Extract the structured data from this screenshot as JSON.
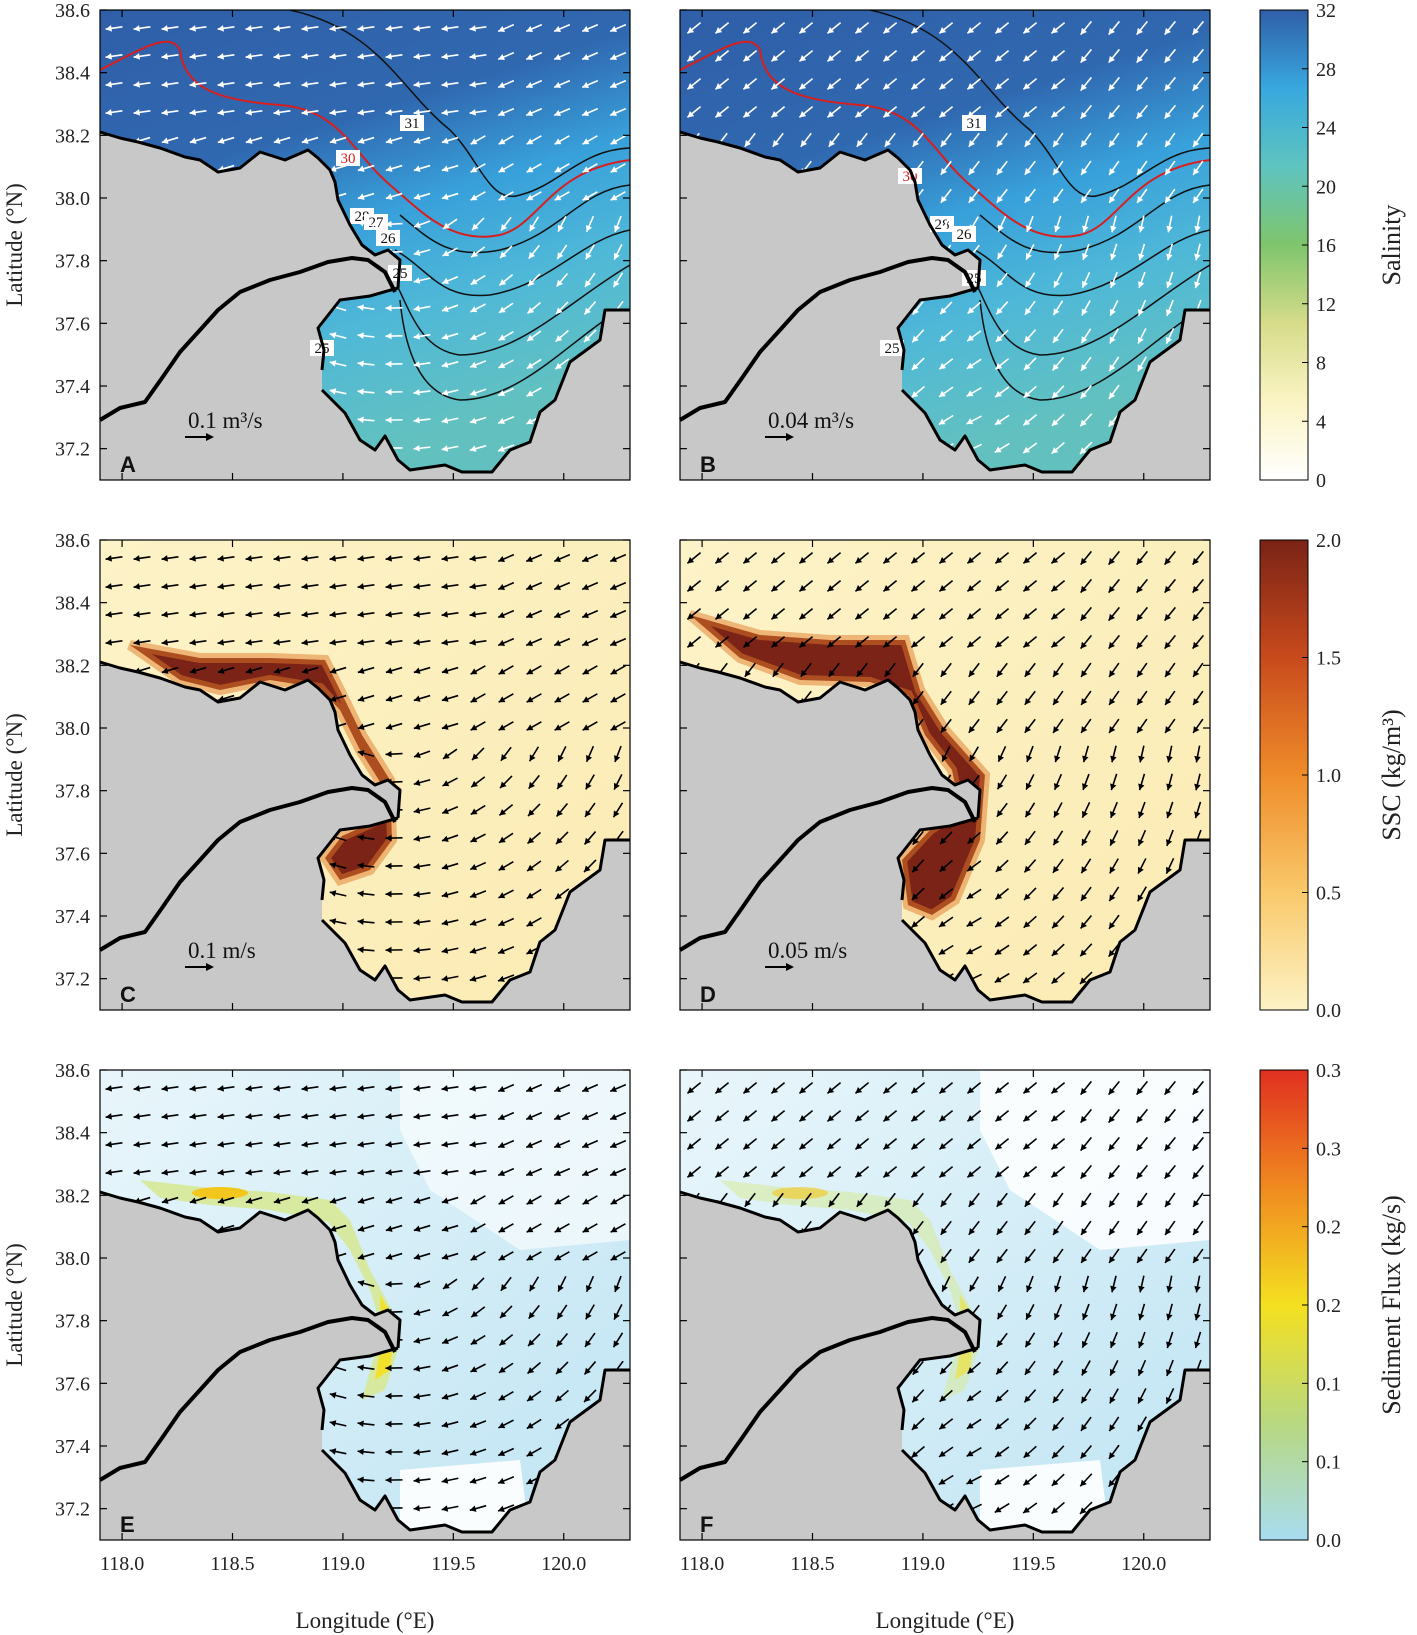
{
  "figure": {
    "xaxis": {
      "label": "Longitude (°E)",
      "ticks": [
        "118.0",
        "118.5",
        "119.0",
        "119.5",
        "120.0"
      ],
      "range": [
        117.9,
        120.3
      ]
    },
    "yaxis": {
      "label": "Latitude (°N)",
      "ticks": [
        "37.2",
        "37.4",
        "37.6",
        "37.8",
        "38.0",
        "38.2",
        "38.4",
        "38.6"
      ],
      "range": [
        37.1,
        38.6
      ]
    },
    "panels": [
      {
        "id": "A",
        "field": "salinity",
        "vector_color": "#ffffff",
        "scale_label": "0.1 m³/s"
      },
      {
        "id": "B",
        "field": "salinity",
        "vector_color": "#ffffff",
        "scale_label": "0.04 m³/s"
      },
      {
        "id": "C",
        "field": "ssc",
        "vector_color": "#000000",
        "scale_label": "0.1 m/s"
      },
      {
        "id": "D",
        "field": "ssc",
        "vector_color": "#000000",
        "scale_label": "0.05 m/s"
      },
      {
        "id": "E",
        "field": "flux",
        "vector_color": "#000000",
        "scale_label": ""
      },
      {
        "id": "F",
        "field": "flux",
        "vector_color": "#000000",
        "scale_label": ""
      }
    ],
    "contour_labels": {
      "A": [
        "31",
        "30",
        "28",
        "27",
        "26",
        "25",
        "25"
      ],
      "B": [
        "31",
        "30",
        "28",
        "26",
        "25",
        "25"
      ]
    },
    "colorbars": [
      {
        "title": "Salinity",
        "ticks": [
          "32",
          "28",
          "24",
          "20",
          "16",
          "12",
          "8",
          "4",
          "0"
        ],
        "colors": [
          "#2f5fa8",
          "#38a8de",
          "#5fc4c0",
          "#7fc56c",
          "#d6dc8a",
          "#fbf4c4",
          "#ffffff"
        ]
      },
      {
        "title": "SSC (kg/m³)",
        "ticks": [
          "2.0",
          "1.5",
          "1.0",
          "0.5",
          "0.0"
        ],
        "colors": [
          "#7a2316",
          "#c84a1c",
          "#ef8c2a",
          "#f9c96b",
          "#fdf3c6"
        ]
      },
      {
        "title": "Sediment Flux (kg/s)",
        "ticks": [
          "0.3",
          "0.3",
          "0.2",
          "0.2",
          "0.1",
          "0.1",
          "0.0"
        ],
        "colors": [
          "#e03020",
          "#f08a20",
          "#f4e020",
          "#b8d880",
          "#a8dcf0"
        ]
      }
    ],
    "land_color": "#c8c8c8"
  }
}
